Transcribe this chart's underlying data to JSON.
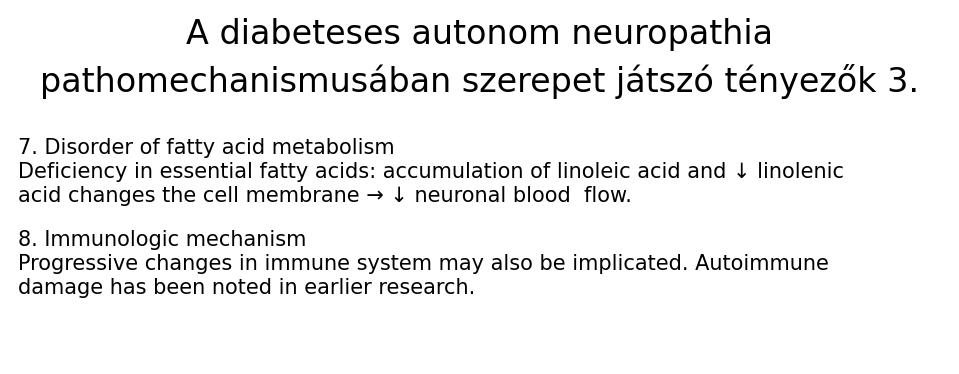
{
  "title_line1": "A diabeteses autonom neuropathia",
  "title_line2": "pathomechanismusában szerepet játszó tényezők 3.",
  "title_fontsize": 24,
  "title_fontweight": "normal",
  "body_fontsize": 15,
  "background_color": "#ffffff",
  "text_color": "#000000",
  "section7_heading": "7. Disorder of fatty acid metabolism",
  "section7_line1": "Deficiency in essential fatty acids: accumulation of linoleic acid and ↓ linolenic",
  "section7_line2": "acid changes the cell membrane → ↓ neuronal blood  flow.",
  "section8_heading": "8. Immunologic mechanism",
  "section8_line1": "Progressive changes in immune system may also be implicated. Autoimmune",
  "section8_line2": "damage has been noted in earlier research.",
  "heading_fontsize": 15,
  "heading_fontweight": "normal",
  "fig_width": 9.59,
  "fig_height": 3.74,
  "dpi": 100
}
